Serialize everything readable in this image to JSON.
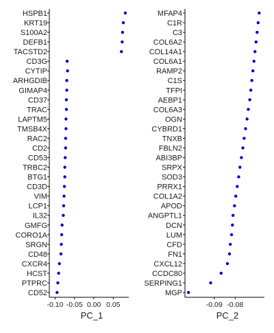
{
  "chart_data": [
    {
      "type": "scatter",
      "xlabel": "PC_1",
      "ylabel": "",
      "xlim": [
        -0.115,
        0.09
      ],
      "xticks": [
        -0.1,
        -0.05,
        0.0,
        0.05
      ],
      "xtick_labels": [
        "-0.10",
        "-0.05",
        "0.00",
        "0.05"
      ],
      "point_color": "#0000cc",
      "genes": [
        "HSPB1",
        "KRT19",
        "S100A2",
        "DEFB1",
        "TACSTD2",
        "CD3G",
        "CYTIP",
        "ARHGDIB",
        "GIMAP4",
        "CD37",
        "TRAC",
        "LAPTM5",
        "TMSB4X",
        "RAC2",
        "CD2",
        "CD53",
        "TRBC2",
        "BTG1",
        "CD3D",
        "VIM",
        "LCP1",
        "IL32",
        "GMFG",
        "CORO1A",
        "SRGN",
        "CD48",
        "CXCR4",
        "HCST",
        "PTPRC",
        "CD52"
      ],
      "values": [
        0.081,
        0.076,
        0.074,
        0.073,
        0.071,
        -0.069,
        -0.068,
        -0.07,
        -0.07,
        -0.071,
        -0.071,
        -0.072,
        -0.072,
        -0.073,
        -0.073,
        -0.074,
        -0.075,
        -0.075,
        -0.076,
        -0.077,
        -0.078,
        -0.079,
        -0.082,
        -0.083,
        -0.084,
        -0.085,
        -0.089,
        -0.091,
        -0.093,
        -0.095
      ]
    },
    {
      "type": "scatter",
      "xlabel": "PC_2",
      "ylabel": "",
      "xlim": [
        -0.104,
        -0.066
      ],
      "xticks": [
        -0.09,
        -0.08
      ],
      "xtick_labels": [
        "-0.09",
        "-0.08"
      ],
      "point_color": "#0000cc",
      "genes": [
        "MFAP4",
        "C1R",
        "C3",
        "COL6A2",
        "COL14A1",
        "COL6A1",
        "RAMP2",
        "C1S",
        "TFPI",
        "AEBP1",
        "COL6A3",
        "OGN",
        "CYBRD1",
        "TNXB",
        "FBLN2",
        "ABI3BP",
        "SRPX",
        "SOD3",
        "PRRX1",
        "COL1A2",
        "APOD",
        "ANGPTL1",
        "DCN",
        "LUM",
        "CFD",
        "FN1",
        "CXCL12",
        "CCDC80",
        "SERPING1",
        "MGP"
      ],
      "values": [
        -0.0685,
        -0.069,
        -0.0695,
        -0.07,
        -0.0705,
        -0.071,
        -0.0715,
        -0.072,
        -0.0725,
        -0.073,
        -0.0737,
        -0.0743,
        -0.075,
        -0.0757,
        -0.0763,
        -0.077,
        -0.0777,
        -0.0783,
        -0.079,
        -0.0797,
        -0.0803,
        -0.081,
        -0.0813,
        -0.0817,
        -0.0823,
        -0.0827,
        -0.0837,
        -0.0867,
        -0.0917,
        -0.1023
      ]
    }
  ]
}
